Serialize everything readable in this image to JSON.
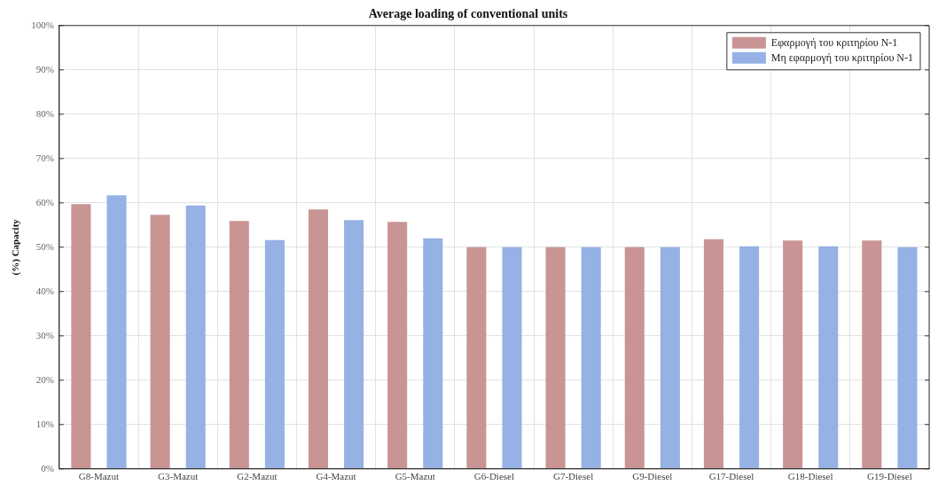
{
  "chart_data": {
    "type": "bar",
    "title": "Average loading of conventional units",
    "ylabel": "(%) Capacity",
    "categories": [
      "G8-Mazut",
      "G3-Mazut",
      "G2-Mazut",
      "G4-Mazut",
      "G5-Mazut",
      "G6-Diesel",
      "G7-Diesel",
      "G9-Diesel",
      "G17-Diesel",
      "G18-Diesel",
      "G19-Diesel"
    ],
    "series": [
      {
        "name": "Εφαρμογή του κριτηρίου N-1",
        "color": "#c99494",
        "values": [
          59.7,
          57.3,
          55.9,
          58.5,
          55.7,
          50,
          50,
          50,
          51.8,
          51.5,
          51.5
        ]
      },
      {
        "name": "Μη εφαρμογή του κριτηρίου N-1",
        "color": "#96b1e4",
        "values": [
          61.7,
          59.4,
          51.6,
          56.1,
          52.0,
          50,
          50,
          50,
          50.2,
          50.2,
          50.0
        ]
      }
    ],
    "ylim": [
      0,
      100
    ],
    "yticks": [
      {
        "value": 0,
        "label": "0%"
      },
      {
        "value": 10,
        "label": "10%"
      },
      {
        "value": 20,
        "label": "20%"
      },
      {
        "value": 30,
        "label": "30%"
      },
      {
        "value": 40,
        "label": "40%"
      },
      {
        "value": 50,
        "label": "50%"
      },
      {
        "value": 60,
        "label": "60%"
      },
      {
        "value": 70,
        "label": "70%"
      },
      {
        "value": 80,
        "label": "80%"
      },
      {
        "value": 90,
        "label": "90%"
      },
      {
        "value": 100,
        "label": "100%"
      }
    ],
    "grid": true,
    "legend": "top right"
  }
}
